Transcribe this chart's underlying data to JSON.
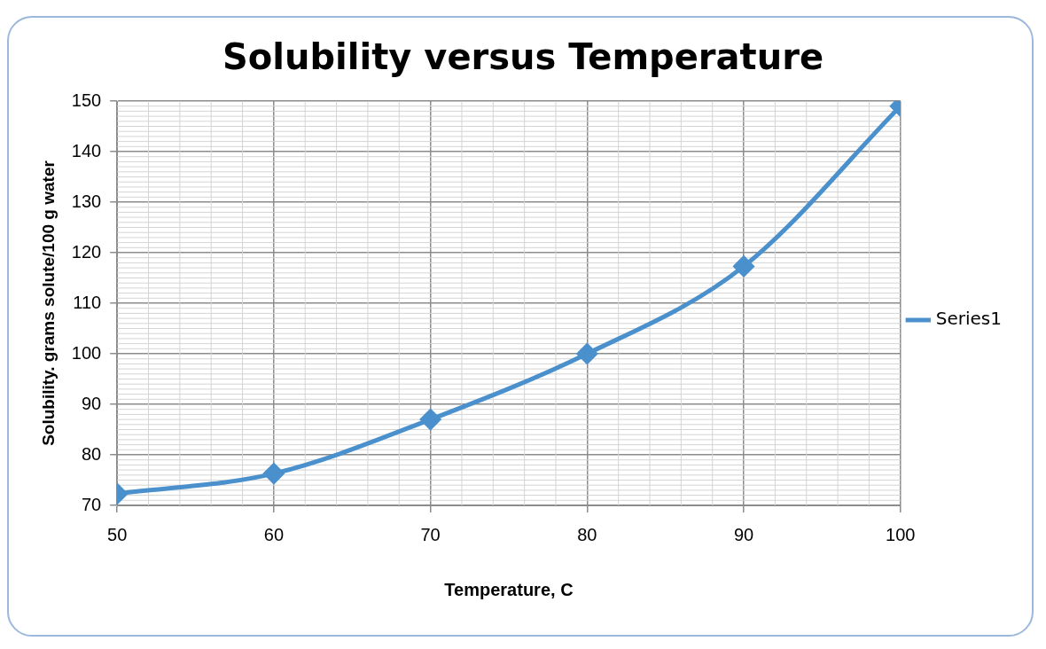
{
  "chart_data": {
    "type": "line",
    "title": "Solubility versus Temperature",
    "xlabel": "Temperature, C",
    "ylabel": "Solubility. grams solute/100 g water",
    "x": [
      50,
      60,
      70,
      80,
      90,
      100
    ],
    "series": [
      {
        "name": "Series1",
        "color": "#4a90cc",
        "values": [
          72.3,
          76.3,
          87,
          100,
          117.3,
          149
        ]
      }
    ],
    "xlim": [
      50,
      100
    ],
    "xticks": [
      50,
      60,
      70,
      80,
      90,
      100
    ],
    "ylim": [
      70,
      150
    ],
    "yticks": [
      70,
      80,
      90,
      100,
      110,
      120,
      130,
      140,
      150
    ],
    "grid": true,
    "legend": "right",
    "marker": "diamond",
    "line_style": "solid"
  }
}
